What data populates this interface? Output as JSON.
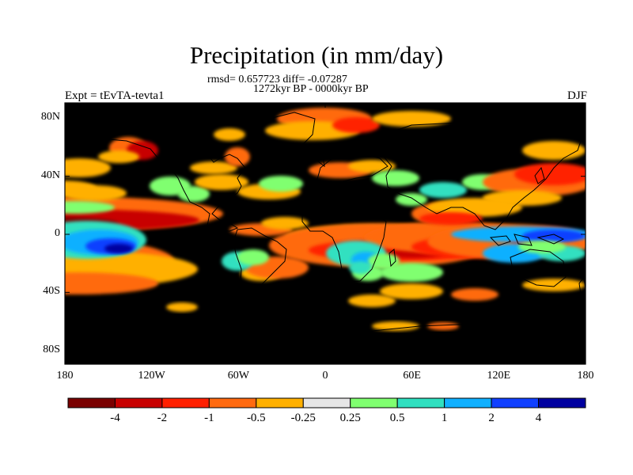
{
  "title": "Precipitation (in mm/day)",
  "stats_line": "rmsd= 0.657723  diff= -0.07287",
  "period": "1272kyr BP - 0000kyr BP",
  "left_label": "Expt = tEvTA-tevta1",
  "right_label": "DJF",
  "lat_ticks": [
    {
      "label": "80N",
      "lat": 80
    },
    {
      "label": "40N",
      "lat": 40
    },
    {
      "label": "0",
      "lat": 0
    },
    {
      "label": "40S",
      "lat": -40
    },
    {
      "label": "80S",
      "lat": -80
    }
  ],
  "lon_ticks": [
    {
      "label": "180",
      "lon": -180
    },
    {
      "label": "120W",
      "lon": -120
    },
    {
      "label": "60W",
      "lon": -60
    },
    {
      "label": "0",
      "lon": 0
    },
    {
      "label": "60E",
      "lon": 60
    },
    {
      "label": "120E",
      "lon": 120
    },
    {
      "label": "180",
      "lon": 180
    }
  ],
  "colorbar": {
    "colors": [
      "#7a0000",
      "#c80000",
      "#ff2000",
      "#ff6a10",
      "#ffb000",
      "#e6e6e6",
      "#80ff70",
      "#30e0c0",
      "#10b0ff",
      "#1040ff",
      "#0000a0"
    ],
    "labels": [
      "-4",
      "-2",
      "-1",
      "-0.5",
      "-0.25",
      "0.25",
      "0.5",
      "1",
      "2",
      "4"
    ]
  },
  "colors": {
    "background": "#e6e6e6",
    "coastline": "#000000"
  }
}
